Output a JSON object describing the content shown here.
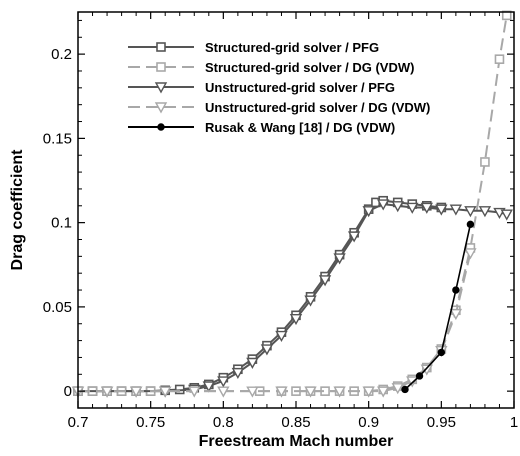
{
  "chart_data": {
    "type": "line",
    "title": "",
    "xlabel": "Freestream Mach number",
    "ylabel": "Drag coefficient",
    "xlim": [
      0.7,
      1.0
    ],
    "ylim": [
      -0.01,
      0.225
    ],
    "xticks": [
      0.7,
      0.75,
      0.8,
      0.85,
      0.9,
      0.95,
      1
    ],
    "xtick_labels": [
      "0.7",
      "0.75",
      "0.8",
      "0.85",
      "0.9",
      "0.95",
      "1"
    ],
    "yticks": [
      0,
      0.05,
      0.1,
      0.15,
      0.2
    ],
    "ytick_labels": [
      "0",
      "0.05",
      "0.1",
      "0.15",
      "0.2"
    ],
    "grid": false,
    "legend_position": "top-left",
    "series": [
      {
        "name": "Structured-grid solver / PFG",
        "color": "#555555",
        "dash": "solid",
        "marker": "square",
        "points": [
          [
            0.7,
            0
          ],
          [
            0.71,
            0
          ],
          [
            0.72,
            0
          ],
          [
            0.73,
            0
          ],
          [
            0.74,
            0
          ],
          [
            0.75,
            0
          ],
          [
            0.76,
            0.0005
          ],
          [
            0.77,
            0.001
          ],
          [
            0.78,
            0.002
          ],
          [
            0.79,
            0.004
          ],
          [
            0.8,
            0.008
          ],
          [
            0.81,
            0.013
          ],
          [
            0.82,
            0.019
          ],
          [
            0.83,
            0.027
          ],
          [
            0.84,
            0.035
          ],
          [
            0.85,
            0.045
          ],
          [
            0.86,
            0.056
          ],
          [
            0.87,
            0.068
          ],
          [
            0.88,
            0.081
          ],
          [
            0.89,
            0.094
          ],
          [
            0.9,
            0.108
          ],
          [
            0.905,
            0.112
          ],
          [
            0.91,
            0.113
          ],
          [
            0.92,
            0.112
          ],
          [
            0.93,
            0.111
          ],
          [
            0.94,
            0.11
          ],
          [
            0.95,
            0.109
          ]
        ]
      },
      {
        "name": "Structured-grid solver / DG (VDW)",
        "color": "#a8a8a8",
        "dash": "dashed",
        "marker": "square",
        "points": [
          [
            0.7,
            0
          ],
          [
            0.71,
            0
          ],
          [
            0.72,
            0
          ],
          [
            0.73,
            0
          ],
          [
            0.74,
            0
          ],
          [
            0.75,
            0
          ],
          [
            0.825,
            0
          ],
          [
            0.84,
            0
          ],
          [
            0.85,
            0
          ],
          [
            0.86,
            0
          ],
          [
            0.87,
            0
          ],
          [
            0.88,
            0
          ],
          [
            0.89,
            0
          ],
          [
            0.9,
            0
          ],
          [
            0.91,
            0.001
          ],
          [
            0.92,
            0.003
          ],
          [
            0.93,
            0.007
          ],
          [
            0.94,
            0.014
          ],
          [
            0.95,
            0.025
          ],
          [
            0.96,
            0.048
          ],
          [
            0.97,
            0.085
          ],
          [
            0.98,
            0.136
          ],
          [
            0.99,
            0.197
          ],
          [
            0.995,
            0.223
          ]
        ]
      },
      {
        "name": "Unstructured-grid solver / PFG",
        "color": "#555555",
        "dash": "solid",
        "marker": "triangle-down",
        "points": [
          [
            0.7,
            0
          ],
          [
            0.72,
            0
          ],
          [
            0.74,
            0
          ],
          [
            0.76,
            0
          ],
          [
            0.78,
            0.001
          ],
          [
            0.79,
            0.003
          ],
          [
            0.8,
            0.006
          ],
          [
            0.81,
            0.011
          ],
          [
            0.82,
            0.017
          ],
          [
            0.83,
            0.025
          ],
          [
            0.84,
            0.033
          ],
          [
            0.85,
            0.043
          ],
          [
            0.86,
            0.054
          ],
          [
            0.87,
            0.066
          ],
          [
            0.88,
            0.079
          ],
          [
            0.89,
            0.092
          ],
          [
            0.9,
            0.107
          ],
          [
            0.91,
            0.111
          ],
          [
            0.92,
            0.11
          ],
          [
            0.93,
            0.109
          ],
          [
            0.94,
            0.109
          ],
          [
            0.95,
            0.108
          ],
          [
            0.96,
            0.108
          ],
          [
            0.97,
            0.107
          ],
          [
            0.98,
            0.107
          ],
          [
            0.99,
            0.106
          ],
          [
            0.995,
            0.105
          ]
        ]
      },
      {
        "name": "Unstructured-grid solver / DG (VDW)",
        "color": "#a8a8a8",
        "dash": "dashed",
        "marker": "triangle-down",
        "points": [
          [
            0.7,
            0
          ],
          [
            0.72,
            0
          ],
          [
            0.74,
            0
          ],
          [
            0.76,
            0
          ],
          [
            0.78,
            0
          ],
          [
            0.8,
            0
          ],
          [
            0.82,
            0
          ],
          [
            0.84,
            0
          ],
          [
            0.86,
            0
          ],
          [
            0.88,
            0
          ],
          [
            0.9,
            0
          ],
          [
            0.91,
            0
          ],
          [
            0.92,
            0.002
          ],
          [
            0.93,
            0.006
          ],
          [
            0.94,
            0.013
          ],
          [
            0.95,
            0.024
          ],
          [
            0.96,
            0.046
          ],
          [
            0.97,
            0.082
          ]
        ]
      },
      {
        "name": "Rusak & Wang [18] / DG (VDW)",
        "color": "#000000",
        "dash": "solid",
        "marker": "circle",
        "points": [
          [
            0.925,
            0.001
          ],
          [
            0.935,
            0.009
          ],
          [
            0.95,
            0.023
          ],
          [
            0.96,
            0.06
          ],
          [
            0.97,
            0.099
          ]
        ]
      }
    ]
  }
}
